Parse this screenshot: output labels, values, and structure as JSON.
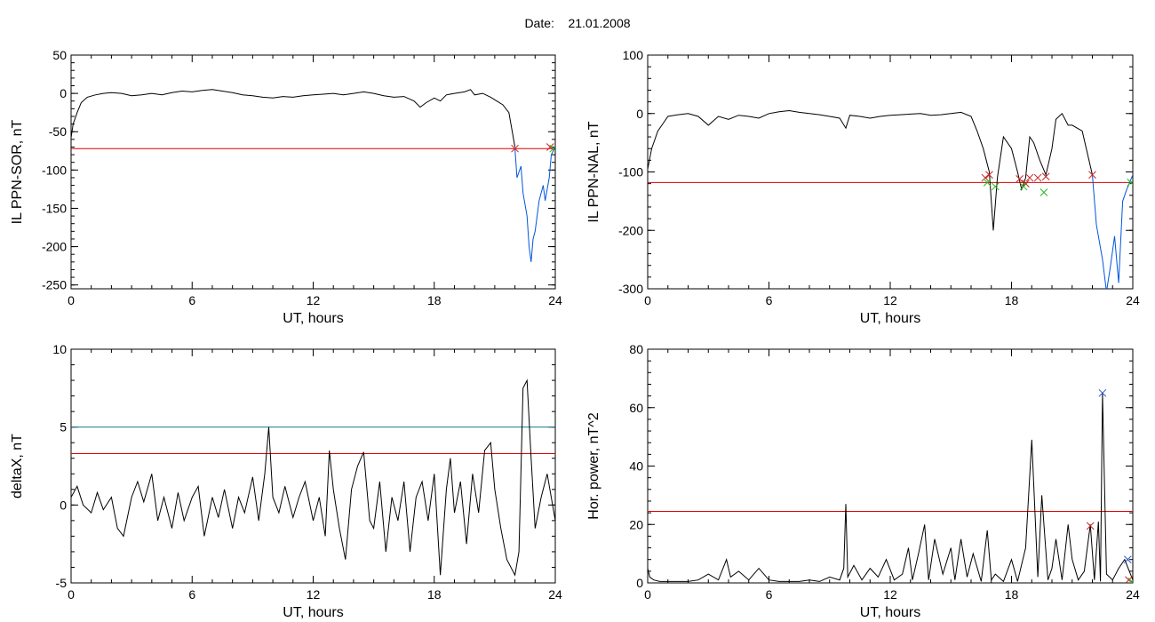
{
  "page": {
    "date_label": "Date:",
    "date_value": "21.01.2008"
  },
  "colors": {
    "curve": "#000000",
    "threshold": "#e00000",
    "threshold_blue": "#1a7a8a",
    "storm": "#0055dd",
    "mark_red": "#cc2222",
    "mark_green": "#22bb22",
    "mark_blue": "#2255cc"
  },
  "chart_data": [
    {
      "id": "sor",
      "type": "line",
      "xlabel": "UT, hours",
      "ylabel": "IL PPN-SOR, nT",
      "xlim": [
        0,
        24
      ],
      "ylim": [
        -255,
        50
      ],
      "xticks": [
        0,
        6,
        12,
        18,
        24
      ],
      "yticks": [
        50,
        0,
        -50,
        -100,
        -150,
        -200,
        -250
      ],
      "thresholds": [
        {
          "y": -72,
          "color": "red"
        }
      ],
      "series": [
        {
          "color": "black",
          "x": [
            0,
            0.1,
            0.3,
            0.5,
            0.8,
            1.2,
            1.6,
            2,
            2.5,
            3,
            3.5,
            4,
            4.5,
            5,
            5.5,
            6,
            6.5,
            7,
            7.5,
            8,
            8.5,
            9,
            9.5,
            10,
            10.5,
            11,
            11.5,
            12,
            12.5,
            13,
            13.5,
            14,
            14.5,
            15,
            15.5,
            16,
            16.5,
            17,
            17.3,
            17.6,
            18,
            18.3,
            18.6,
            19,
            19.5,
            19.8,
            20,
            20.4,
            20.8,
            21.1,
            21.4,
            21.7,
            22
          ],
          "y": [
            -58,
            -40,
            -25,
            -12,
            -5,
            -2,
            0,
            1,
            0,
            -3,
            -2,
            0,
            -2,
            1,
            3,
            2,
            4,
            5,
            3,
            1,
            -2,
            -3,
            -5,
            -6,
            -4,
            -5,
            -3,
            -2,
            -1,
            0,
            -2,
            0,
            2,
            0,
            -3,
            -5,
            -4,
            -10,
            -18,
            -12,
            -6,
            -10,
            -2,
            0,
            2,
            5,
            -2,
            0,
            -5,
            -10,
            -15,
            -25,
            -70
          ]
        },
        {
          "color": "blue",
          "x": [
            22,
            22.1,
            22.3,
            22.4,
            22.6,
            22.7,
            22.8,
            22.9,
            23,
            23.2,
            23.4,
            23.5,
            23.7,
            23.8,
            24
          ],
          "y": [
            -72,
            -110,
            -95,
            -130,
            -160,
            -200,
            -220,
            -190,
            -180,
            -140,
            -120,
            -140,
            -110,
            -80,
            -70
          ]
        }
      ],
      "markers": [
        {
          "x": 22.0,
          "y": -72,
          "color": "red"
        },
        {
          "x": 23.75,
          "y": -70,
          "color": "red"
        },
        {
          "x": 23.9,
          "y": -72,
          "color": "green"
        }
      ]
    },
    {
      "id": "nal",
      "type": "line",
      "xlabel": "UT, hours",
      "ylabel": "IL PPN-NAL, nT",
      "xlim": [
        0,
        24
      ],
      "ylim": [
        -300,
        100
      ],
      "xticks": [
        0,
        6,
        12,
        18,
        24
      ],
      "yticks": [
        100,
        0,
        -100,
        -200,
        -300
      ],
      "thresholds": [
        {
          "y": -118,
          "color": "red"
        }
      ],
      "series": [
        {
          "color": "black",
          "x": [
            0,
            0.2,
            0.5,
            0.8,
            1,
            1.5,
            2,
            2.5,
            3,
            3.5,
            4,
            4.5,
            5,
            5.5,
            6,
            6.5,
            7,
            7.5,
            8,
            8.5,
            9,
            9.5,
            9.8,
            10,
            10.5,
            11,
            11.5,
            12,
            12.5,
            13,
            13.5,
            14,
            14.5,
            15,
            15.5,
            16,
            16.3,
            16.6,
            16.9,
            17.1,
            17.3,
            17.6,
            18,
            18.3,
            18.5,
            18.7,
            18.9,
            19.1,
            19.4,
            19.7,
            20,
            20.2,
            20.5,
            20.8,
            21,
            21.5,
            22
          ],
          "y": [
            -95,
            -60,
            -30,
            -15,
            -5,
            -2,
            0,
            -5,
            -20,
            -5,
            -10,
            -3,
            -5,
            -8,
            0,
            3,
            5,
            2,
            0,
            -2,
            -5,
            -8,
            -25,
            -3,
            -5,
            -8,
            -5,
            -3,
            -2,
            -1,
            0,
            -3,
            -2,
            0,
            2,
            -5,
            -30,
            -60,
            -100,
            -200,
            -110,
            -40,
            -60,
            -100,
            -130,
            -110,
            -40,
            -50,
            -80,
            -105,
            -60,
            -10,
            0,
            -20,
            -20,
            -30,
            -105
          ]
        },
        {
          "color": "blue",
          "x": [
            22,
            22.2,
            22.5,
            22.7,
            22.9,
            23.1,
            23.3,
            23.5,
            23.7,
            24
          ],
          "y": [
            -105,
            -190,
            -250,
            -305,
            -260,
            -210,
            -290,
            -150,
            -130,
            -105
          ]
        }
      ],
      "markers": [
        {
          "x": 16.7,
          "y": -110,
          "color": "red"
        },
        {
          "x": 16.9,
          "y": -105,
          "color": "red"
        },
        {
          "x": 16.8,
          "y": -118,
          "color": "green"
        },
        {
          "x": 17.2,
          "y": -125,
          "color": "green"
        },
        {
          "x": 18.4,
          "y": -112,
          "color": "red"
        },
        {
          "x": 18.7,
          "y": -120,
          "color": "red"
        },
        {
          "x": 18.9,
          "y": -110,
          "color": "red"
        },
        {
          "x": 18.6,
          "y": -125,
          "color": "green"
        },
        {
          "x": 19.3,
          "y": -110,
          "color": "red"
        },
        {
          "x": 19.7,
          "y": -108,
          "color": "red"
        },
        {
          "x": 19.6,
          "y": -135,
          "color": "green"
        },
        {
          "x": 22.0,
          "y": -105,
          "color": "red"
        },
        {
          "x": 23.9,
          "y": -118,
          "color": "green"
        }
      ]
    },
    {
      "id": "deltax",
      "type": "line",
      "xlabel": "UT, hours",
      "ylabel": "deltaX, nT",
      "xlim": [
        0,
        24
      ],
      "ylim": [
        -5,
        10
      ],
      "xticks": [
        0,
        6,
        12,
        18,
        24
      ],
      "yticks": [
        10,
        5,
        0,
        -5
      ],
      "thresholds": [
        {
          "y": 5.0,
          "color": "blue"
        },
        {
          "y": 3.3,
          "color": "red"
        }
      ],
      "series": [
        {
          "color": "black",
          "x": [
            0,
            0.3,
            0.6,
            1,
            1.3,
            1.6,
            2,
            2.3,
            2.6,
            3,
            3.3,
            3.6,
            4,
            4.3,
            4.6,
            5,
            5.3,
            5.6,
            6,
            6.3,
            6.6,
            7,
            7.3,
            7.6,
            8,
            8.3,
            8.6,
            9,
            9.3,
            9.6,
            9.8,
            10,
            10.3,
            10.6,
            11,
            11.3,
            11.6,
            12,
            12.3,
            12.6,
            12.8,
            13,
            13.3,
            13.6,
            13.9,
            14.2,
            14.5,
            14.8,
            15,
            15.3,
            15.6,
            15.9,
            16.2,
            16.5,
            16.8,
            17.1,
            17.4,
            17.7,
            18,
            18.3,
            18.6,
            18.8,
            19,
            19.3,
            19.6,
            19.9,
            20.2,
            20.5,
            20.8,
            21,
            21.3,
            21.6,
            22,
            22.2,
            22.4,
            22.6,
            22.8,
            23,
            23.3,
            23.6,
            24
          ],
          "y": [
            0.5,
            1.2,
            0,
            -0.5,
            0.8,
            -0.3,
            0.5,
            -1.5,
            -2.0,
            0.5,
            1.5,
            0.2,
            2.0,
            -1.0,
            0.5,
            -1.5,
            0.8,
            -1.0,
            0.5,
            1.2,
            -2.0,
            0.5,
            -0.8,
            1.0,
            -1.5,
            0.5,
            -0.5,
            1.8,
            -1.0,
            2.0,
            5.0,
            0.5,
            -0.5,
            1.2,
            -0.8,
            0.5,
            1.5,
            -1.0,
            0.5,
            -2.0,
            3.5,
            1.0,
            -1.5,
            -3.5,
            1.0,
            2.5,
            3.4,
            -1.0,
            -1.5,
            1.5,
            -3.0,
            0.5,
            -1.0,
            1.5,
            -3.0,
            0.5,
            1.5,
            -1.0,
            2.0,
            -4.5,
            1.0,
            3.0,
            -0.5,
            1.5,
            -2.5,
            2.0,
            -0.5,
            3.5,
            4.0,
            1.0,
            -1.5,
            -3.5,
            -4.5,
            -3.0,
            7.5,
            8.0,
            3.0,
            -1.5,
            0.5,
            2.0,
            -1.0
          ]
        }
      ],
      "markers": []
    },
    {
      "id": "power",
      "type": "line",
      "xlabel": "UT, hours",
      "ylabel": "Hor. power, nT^2",
      "xlim": [
        0,
        24
      ],
      "ylim": [
        0,
        80
      ],
      "xticks": [
        0,
        6,
        12,
        18,
        24
      ],
      "yticks": [
        80,
        60,
        40,
        20,
        0
      ],
      "thresholds": [
        {
          "y": 24.5,
          "color": "red"
        }
      ],
      "series": [
        {
          "color": "black",
          "x": [
            0,
            0.1,
            0.3,
            0.6,
            1,
            2,
            2.5,
            3,
            3.5,
            3.9,
            4.1,
            4.5,
            5,
            5.5,
            6,
            6.5,
            7,
            7.5,
            8,
            8.5,
            9,
            9.5,
            9.7,
            9.8,
            9.9,
            10.2,
            10.6,
            11,
            11.4,
            11.8,
            12.2,
            12.6,
            12.9,
            13.1,
            13.4,
            13.7,
            13.9,
            14.2,
            14.6,
            15,
            15.2,
            15.5,
            15.8,
            16.1,
            16.5,
            16.8,
            17,
            17.2,
            17.6,
            18,
            18.3,
            18.7,
            19,
            19.3,
            19.5,
            19.8,
            20.0,
            20.2,
            20.5,
            20.8,
            21.0,
            21.3,
            21.6,
            21.9,
            22.1,
            22.3,
            22.4,
            22.5,
            22.7,
            23.0,
            23.3,
            23.6,
            24
          ],
          "y": [
            5,
            2,
            1,
            0.5,
            0.5,
            0.5,
            1,
            3,
            1,
            8,
            2,
            4,
            1,
            5,
            1,
            0.5,
            0.5,
            0.5,
            1,
            0.5,
            2,
            1,
            5,
            27,
            2,
            6,
            1,
            5,
            2,
            8,
            1,
            3,
            12,
            1,
            10,
            20,
            1,
            15,
            3,
            12,
            1,
            15,
            2,
            10,
            0.5,
            18,
            1,
            3,
            0.5,
            8,
            0.5,
            12,
            49,
            2,
            30,
            1,
            5,
            15,
            1,
            20,
            8,
            1,
            4,
            20,
            1,
            21,
            0.5,
            65,
            3,
            1,
            5,
            8,
            1
          ]
        }
      ],
      "markers": [
        {
          "x": 21.9,
          "y": 19.5,
          "color": "red"
        },
        {
          "x": 22.5,
          "y": 65,
          "color": "blue"
        },
        {
          "x": 23.75,
          "y": 8,
          "color": "blue"
        },
        {
          "x": 23.8,
          "y": 1,
          "color": "red"
        },
        {
          "x": 23.95,
          "y": 0.5,
          "color": "green"
        }
      ]
    }
  ]
}
